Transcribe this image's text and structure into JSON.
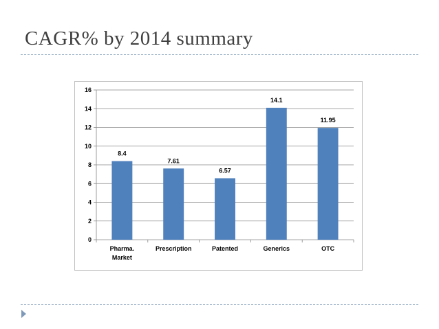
{
  "slide": {
    "title": "CAGR% by 2014 summary"
  },
  "colors": {
    "bar": "#4f81bd",
    "grid": "#868686",
    "title": "#3f3f3f"
  },
  "chart_data": {
    "type": "bar",
    "title": "",
    "xlabel": "",
    "ylabel": "",
    "categories": [
      [
        "Pharma.",
        "Market"
      ],
      [
        "Prescription"
      ],
      [
        "Patented"
      ],
      [
        "Generics"
      ],
      [
        "OTC"
      ]
    ],
    "values": [
      8.4,
      7.61,
      6.57,
      14.1,
      11.95
    ],
    "data_labels": [
      "8.4",
      "7.61",
      "6.57",
      "14.1",
      "11.95"
    ],
    "ylim": [
      0,
      16
    ],
    "yticks": [
      0,
      2,
      4,
      6,
      8,
      10,
      12,
      14,
      16
    ],
    "grid": true,
    "legend": "none"
  }
}
